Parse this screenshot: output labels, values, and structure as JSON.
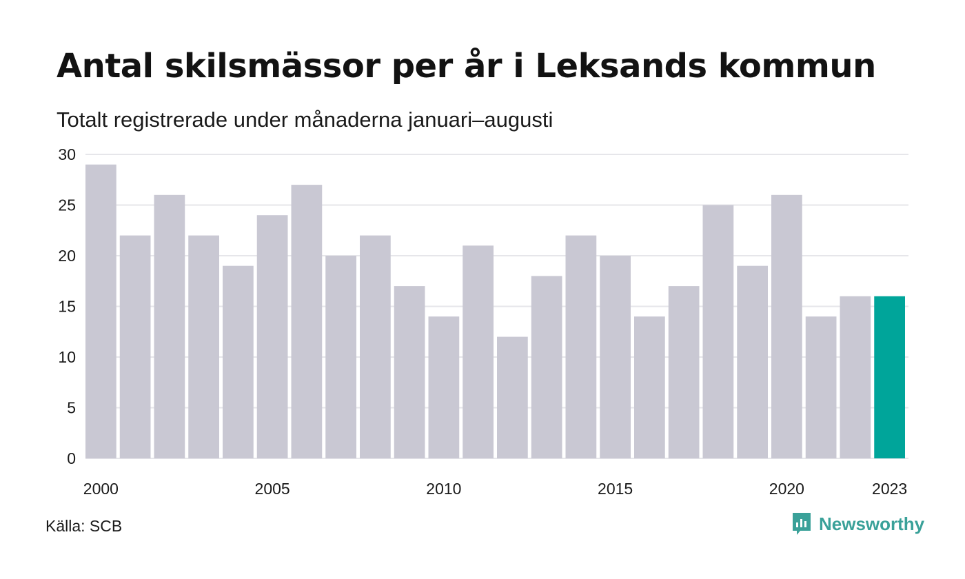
{
  "header": {
    "title": "Antal skilsmässor per år i Leksands kommun",
    "subtitle": "Totalt registrerade under månaderna januari–augusti"
  },
  "footer": {
    "source": "Källa: SCB",
    "brand": "Newsworthy",
    "brand_icon": "chart-bar-icon"
  },
  "colors": {
    "bar": "#c9c8d3",
    "highlight": "#00a59a",
    "grid": "#e6e6ea",
    "brand": "#3aa199"
  },
  "chart_data": {
    "type": "bar",
    "categories": [
      "2000",
      "2001",
      "2002",
      "2003",
      "2004",
      "2005",
      "2006",
      "2007",
      "2008",
      "2009",
      "2010",
      "2011",
      "2012",
      "2013",
      "2014",
      "2015",
      "2016",
      "2017",
      "2018",
      "2019",
      "2020",
      "2021",
      "2022",
      "2023"
    ],
    "values": [
      29,
      22,
      26,
      22,
      19,
      24,
      27,
      20,
      22,
      17,
      14,
      21,
      12,
      18,
      22,
      20,
      14,
      17,
      25,
      19,
      26,
      14,
      16,
      16
    ],
    "x_tick_labels": [
      "2000",
      "2005",
      "2010",
      "2015",
      "2020",
      "2023"
    ],
    "y_ticks": [
      0,
      5,
      10,
      15,
      20,
      25,
      30
    ],
    "ylim": [
      0,
      30
    ],
    "highlight_category": "2023",
    "grid": true,
    "legend": "none",
    "title": "Antal skilsmässor per år i Leksands kommun",
    "xlabel": "",
    "ylabel": ""
  }
}
